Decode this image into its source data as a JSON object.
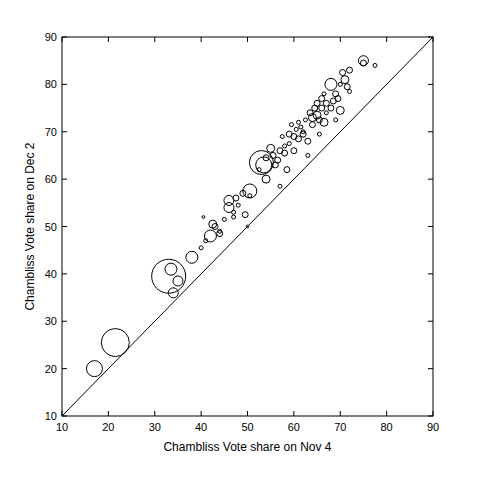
{
  "chart_data": {
    "type": "scatter",
    "x_label": "Chambliss Vote share on Nov 4",
    "y_label": "Chambliss Vote share on Dec 2",
    "xlim": [
      10,
      90
    ],
    "ylim": [
      10,
      90
    ],
    "xticks": [
      10,
      20,
      30,
      40,
      50,
      60,
      70,
      80,
      90
    ],
    "yticks": [
      10,
      20,
      30,
      40,
      50,
      60,
      70,
      80,
      90
    ],
    "color": "#000000",
    "marker": "circle",
    "grid": false,
    "x": [
      17,
      21.5,
      33,
      33.5,
      34,
      35,
      38,
      40,
      40.5,
      41,
      42,
      42.5,
      43,
      44,
      44,
      45,
      46,
      46,
      47,
      47,
      47.5,
      48,
      49,
      49.5,
      50,
      50.5,
      50.5,
      53,
      53.5,
      52.5,
      54,
      54,
      55,
      55.5,
      56,
      56.5,
      57,
      57,
      57.5,
      58,
      58,
      58.5,
      59,
      59,
      59.5,
      60,
      60,
      60.5,
      61,
      61,
      61.5,
      62,
      62,
      62.5,
      63,
      63,
      63.5,
      64,
      64,
      64.5,
      65,
      65,
      65.5,
      65.5,
      66,
      66,
      66.5,
      66.5,
      67,
      67,
      68,
      68,
      68.5,
      69,
      69,
      69.5,
      70,
      70,
      70.5,
      71,
      71.5,
      72,
      72,
      75,
      75,
      77.5
    ],
    "values": [
      20,
      25.5,
      39.5,
      41,
      36,
      38.5,
      43.5,
      45.5,
      52,
      47,
      48,
      50.5,
      50,
      49,
      48.5,
      51.5,
      54,
      55.5,
      53,
      52,
      56,
      54.5,
      57,
      52.5,
      50,
      57.5,
      56.5,
      63.5,
      63,
      62,
      60,
      64.5,
      66.5,
      65,
      63,
      64,
      66,
      58.5,
      69,
      65.5,
      67,
      62,
      69.5,
      67.5,
      71.5,
      69,
      66,
      70.5,
      68.5,
      72,
      71,
      69.5,
      70,
      72.5,
      68,
      65,
      74,
      73,
      71.5,
      75,
      73.5,
      76,
      72.5,
      69.5,
      75,
      77,
      72,
      78,
      76,
      74,
      80,
      75,
      76.5,
      78,
      72.5,
      77,
      74.5,
      80,
      82.5,
      81,
      79.5,
      83,
      78.5,
      85,
      84.5,
      84
    ],
    "sizes": [
      64,
      196,
      289,
      36,
      25,
      25,
      36,
      4,
      2,
      4,
      36,
      16,
      9,
      4,
      9,
      4,
      25,
      25,
      4,
      4,
      9,
      4,
      9,
      9,
      2,
      49,
      4,
      144,
      64,
      4,
      16,
      9,
      16,
      9,
      9,
      9,
      9,
      4,
      4,
      9,
      4,
      9,
      9,
      4,
      4,
      9,
      9,
      4,
      9,
      4,
      4,
      9,
      4,
      4,
      9,
      4,
      9,
      16,
      9,
      9,
      16,
      9,
      9,
      4,
      9,
      9,
      16,
      4,
      9,
      4,
      36,
      9,
      9,
      9,
      4,
      9,
      16,
      4,
      9,
      16,
      9,
      9,
      4,
      25,
      9,
      4
    ]
  }
}
